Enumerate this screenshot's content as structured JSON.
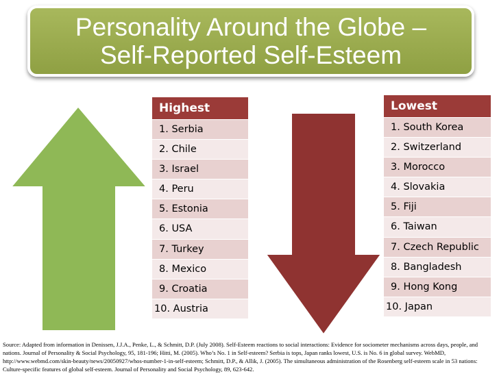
{
  "title": {
    "line1": "Personality Around the Globe –",
    "line2": "Self-Reported Self-Esteem"
  },
  "colors": {
    "title_bg": "#9aab4f",
    "up_arrow": "#8fb856",
    "down_arrow": "#8f3331",
    "table_header": "#9b3b38",
    "row_dark": "#e8d1d0",
    "row_light": "#f4e9e9"
  },
  "icons": {
    "left": "up-arrow-icon",
    "right": "down-arrow-icon"
  },
  "highest": {
    "header": "Highest",
    "items": [
      "1. Serbia",
      "2. Chile",
      "3. Israel",
      "4. Peru",
      "5. Estonia",
      "6. USA",
      "7. Turkey",
      "8. Mexico",
      "9. Croatia",
      "10. Austria"
    ]
  },
  "lowest": {
    "header": "Lowest",
    "items": [
      "1. South Korea",
      "2. Switzerland",
      "3. Morocco",
      "4. Slovakia",
      "5. Fiji",
      "6. Taiwan",
      "7. Czech Republic",
      "8. Bangladesh",
      "9. Hong Kong",
      "10. Japan"
    ]
  },
  "source": "Source:  Adapted from information in Denissen, J.J.A., Penke, L., & Schmitt, D.P. (July 2008). Self-Esteem reactions to social interactions: Evidence for sociometer mechanisms across days, people, and nations. Journal of Personality & Social Psychology, 95, 181-196; Hitti, M. (2005).  Who’s No. 1 in Self-esteem?  Serbia is tops, Japan ranks lowest, U.S. is No. 6 in global survey.  WebMD, http://www.webmd.com/skin-beauty/news/20050927/whos-number-1-in-self-esteem; Schmitt, D.P., & Allik, J. (2005).  The simultaneous administration of the Rosenberg self-esteem scale in 53 nations:  Culture-specific features of global self-esteem.  Journal of Personality and Social Psychology, 89, 623-642."
}
